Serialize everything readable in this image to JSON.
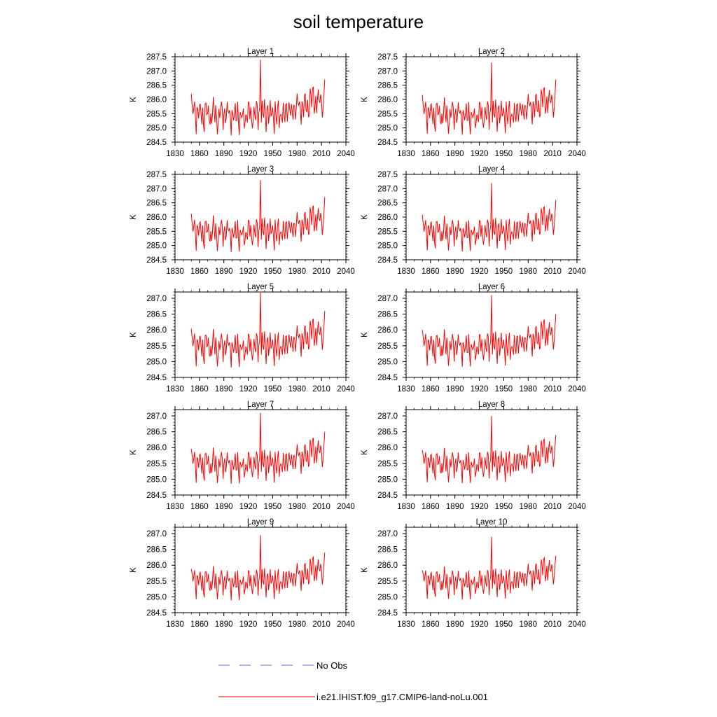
{
  "title": "soil temperature",
  "colors": {
    "model": "#ff0000",
    "obs": "#6a6ae8",
    "axis": "#000000"
  },
  "chart_data": [
    {
      "type": "line",
      "title": "Layer 1",
      "ylabel": "K",
      "xlim": [
        1830,
        2040
      ],
      "ylim": [
        284.5,
        287.5
      ],
      "yticks": [
        "287.5",
        "287.0",
        "286.5",
        "286.0",
        "285.5",
        "285.0",
        "284.5"
      ],
      "xticks": [
        "1830",
        "1860",
        "1890",
        "1920",
        "1950",
        "1980",
        "2010",
        "2040"
      ],
      "series": [
        {
          "name": "i.e21.IHIST.f09_g17.CMIP6-land-noLu.001",
          "peak": 287.4,
          "end": 286.7
        }
      ]
    },
    {
      "type": "line",
      "title": "Layer 2",
      "ylabel": "K",
      "xlim": [
        1830,
        2040
      ],
      "ylim": [
        284.5,
        287.5
      ],
      "yticks": [
        "287.5",
        "287.0",
        "286.5",
        "286.0",
        "285.5",
        "285.0",
        "284.5"
      ],
      "xticks": [
        "1830",
        "1860",
        "1890",
        "1920",
        "1950",
        "1980",
        "2010",
        "2040"
      ],
      "series": [
        {
          "name": "i.e21.IHIST.f09_g17.CMIP6-land-noLu.001",
          "peak": 287.3,
          "end": 286.7
        }
      ]
    },
    {
      "type": "line",
      "title": "Layer 3",
      "ylabel": "K",
      "xlim": [
        1830,
        2040
      ],
      "ylim": [
        284.5,
        287.5
      ],
      "yticks": [
        "287.5",
        "287.0",
        "286.5",
        "286.0",
        "285.5",
        "285.0",
        "284.5"
      ],
      "xticks": [
        "1830",
        "1860",
        "1890",
        "1920",
        "1950",
        "1980",
        "2010",
        "2040"
      ],
      "series": [
        {
          "name": "i.e21.IHIST.f09_g17.CMIP6-land-noLu.001",
          "peak": 287.3,
          "end": 286.7
        }
      ]
    },
    {
      "type": "line",
      "title": "Layer 4",
      "ylabel": "K",
      "xlim": [
        1830,
        2040
      ],
      "ylim": [
        284.5,
        287.5
      ],
      "yticks": [
        "287.5",
        "287.0",
        "286.5",
        "286.0",
        "285.5",
        "285.0",
        "284.5"
      ],
      "xticks": [
        "1830",
        "1860",
        "1890",
        "1920",
        "1950",
        "1980",
        "2010",
        "2040"
      ],
      "series": [
        {
          "name": "i.e21.IHIST.f09_g17.CMIP6-land-noLu.001",
          "peak": 287.2,
          "end": 286.6
        }
      ]
    },
    {
      "type": "line",
      "title": "Layer 5",
      "ylabel": "K",
      "xlim": [
        1830,
        2040
      ],
      "ylim": [
        284.5,
        287.2
      ],
      "yticks": [
        "287.0",
        "286.5",
        "286.0",
        "285.5",
        "285.0",
        "284.5"
      ],
      "xticks": [
        "1830",
        "1860",
        "1890",
        "1920",
        "1950",
        "1980",
        "2010",
        "2040"
      ],
      "series": [
        {
          "name": "i.e21.IHIST.f09_g17.CMIP6-land-noLu.001",
          "peak": 287.2,
          "end": 286.6
        }
      ]
    },
    {
      "type": "line",
      "title": "Layer 6",
      "ylabel": "K",
      "xlim": [
        1830,
        2040
      ],
      "ylim": [
        284.5,
        287.2
      ],
      "yticks": [
        "287.0",
        "286.5",
        "286.0",
        "285.5",
        "285.0",
        "284.5"
      ],
      "xticks": [
        "1830",
        "1860",
        "1890",
        "1920",
        "1950",
        "1980",
        "2010",
        "2040"
      ],
      "series": [
        {
          "name": "i.e21.IHIST.f09_g17.CMIP6-land-noLu.001",
          "peak": 287.1,
          "end": 286.5
        }
      ]
    },
    {
      "type": "line",
      "title": "Layer 7",
      "ylabel": "K",
      "xlim": [
        1830,
        2040
      ],
      "ylim": [
        284.5,
        287.2
      ],
      "yticks": [
        "287.0",
        "286.5",
        "286.0",
        "285.5",
        "285.0",
        "284.5"
      ],
      "xticks": [
        "1830",
        "1860",
        "1890",
        "1920",
        "1950",
        "1980",
        "2010",
        "2040"
      ],
      "series": [
        {
          "name": "i.e21.IHIST.f09_g17.CMIP6-land-noLu.001",
          "peak": 287.1,
          "end": 286.5
        }
      ]
    },
    {
      "type": "line",
      "title": "Layer 8",
      "ylabel": "K",
      "xlim": [
        1830,
        2040
      ],
      "ylim": [
        284.5,
        287.2
      ],
      "yticks": [
        "287.0",
        "286.5",
        "286.0",
        "285.5",
        "285.0",
        "284.5"
      ],
      "xticks": [
        "1830",
        "1860",
        "1890",
        "1920",
        "1950",
        "1980",
        "2010",
        "2040"
      ],
      "series": [
        {
          "name": "i.e21.IHIST.f09_g17.CMIP6-land-noLu.001",
          "peak": 287.0,
          "end": 286.4
        }
      ]
    },
    {
      "type": "line",
      "title": "Layer 9",
      "ylabel": "K",
      "xlim": [
        1830,
        2040
      ],
      "ylim": [
        284.5,
        287.2
      ],
      "yticks": [
        "287.0",
        "286.5",
        "286.0",
        "285.5",
        "285.0",
        "284.5"
      ],
      "xticks": [
        "1830",
        "1860",
        "1890",
        "1920",
        "1950",
        "1980",
        "2010",
        "2040"
      ],
      "series": [
        {
          "name": "i.e21.IHIST.f09_g17.CMIP6-land-noLu.001",
          "peak": 286.95,
          "end": 286.4
        }
      ]
    },
    {
      "type": "line",
      "title": "Layer 10",
      "ylabel": "K",
      "xlim": [
        1830,
        2040
      ],
      "ylim": [
        284.5,
        287.2
      ],
      "yticks": [
        "287.0",
        "286.5",
        "286.0",
        "285.5",
        "285.0",
        "284.5"
      ],
      "xticks": [
        "1830",
        "1860",
        "1890",
        "1920",
        "1950",
        "1980",
        "2010",
        "2040"
      ],
      "series": [
        {
          "name": "i.e21.IHIST.f09_g17.CMIP6-land-noLu.001",
          "peak": 286.9,
          "end": 286.3
        }
      ]
    }
  ],
  "legend": [
    {
      "label": "No Obs",
      "style": "dashed",
      "color": "#6a6ae8"
    },
    {
      "label": "i.e21.IHIST.f09_g17.CMIP6-land-noLu.001",
      "style": "solid",
      "color": "#ff0000"
    }
  ]
}
